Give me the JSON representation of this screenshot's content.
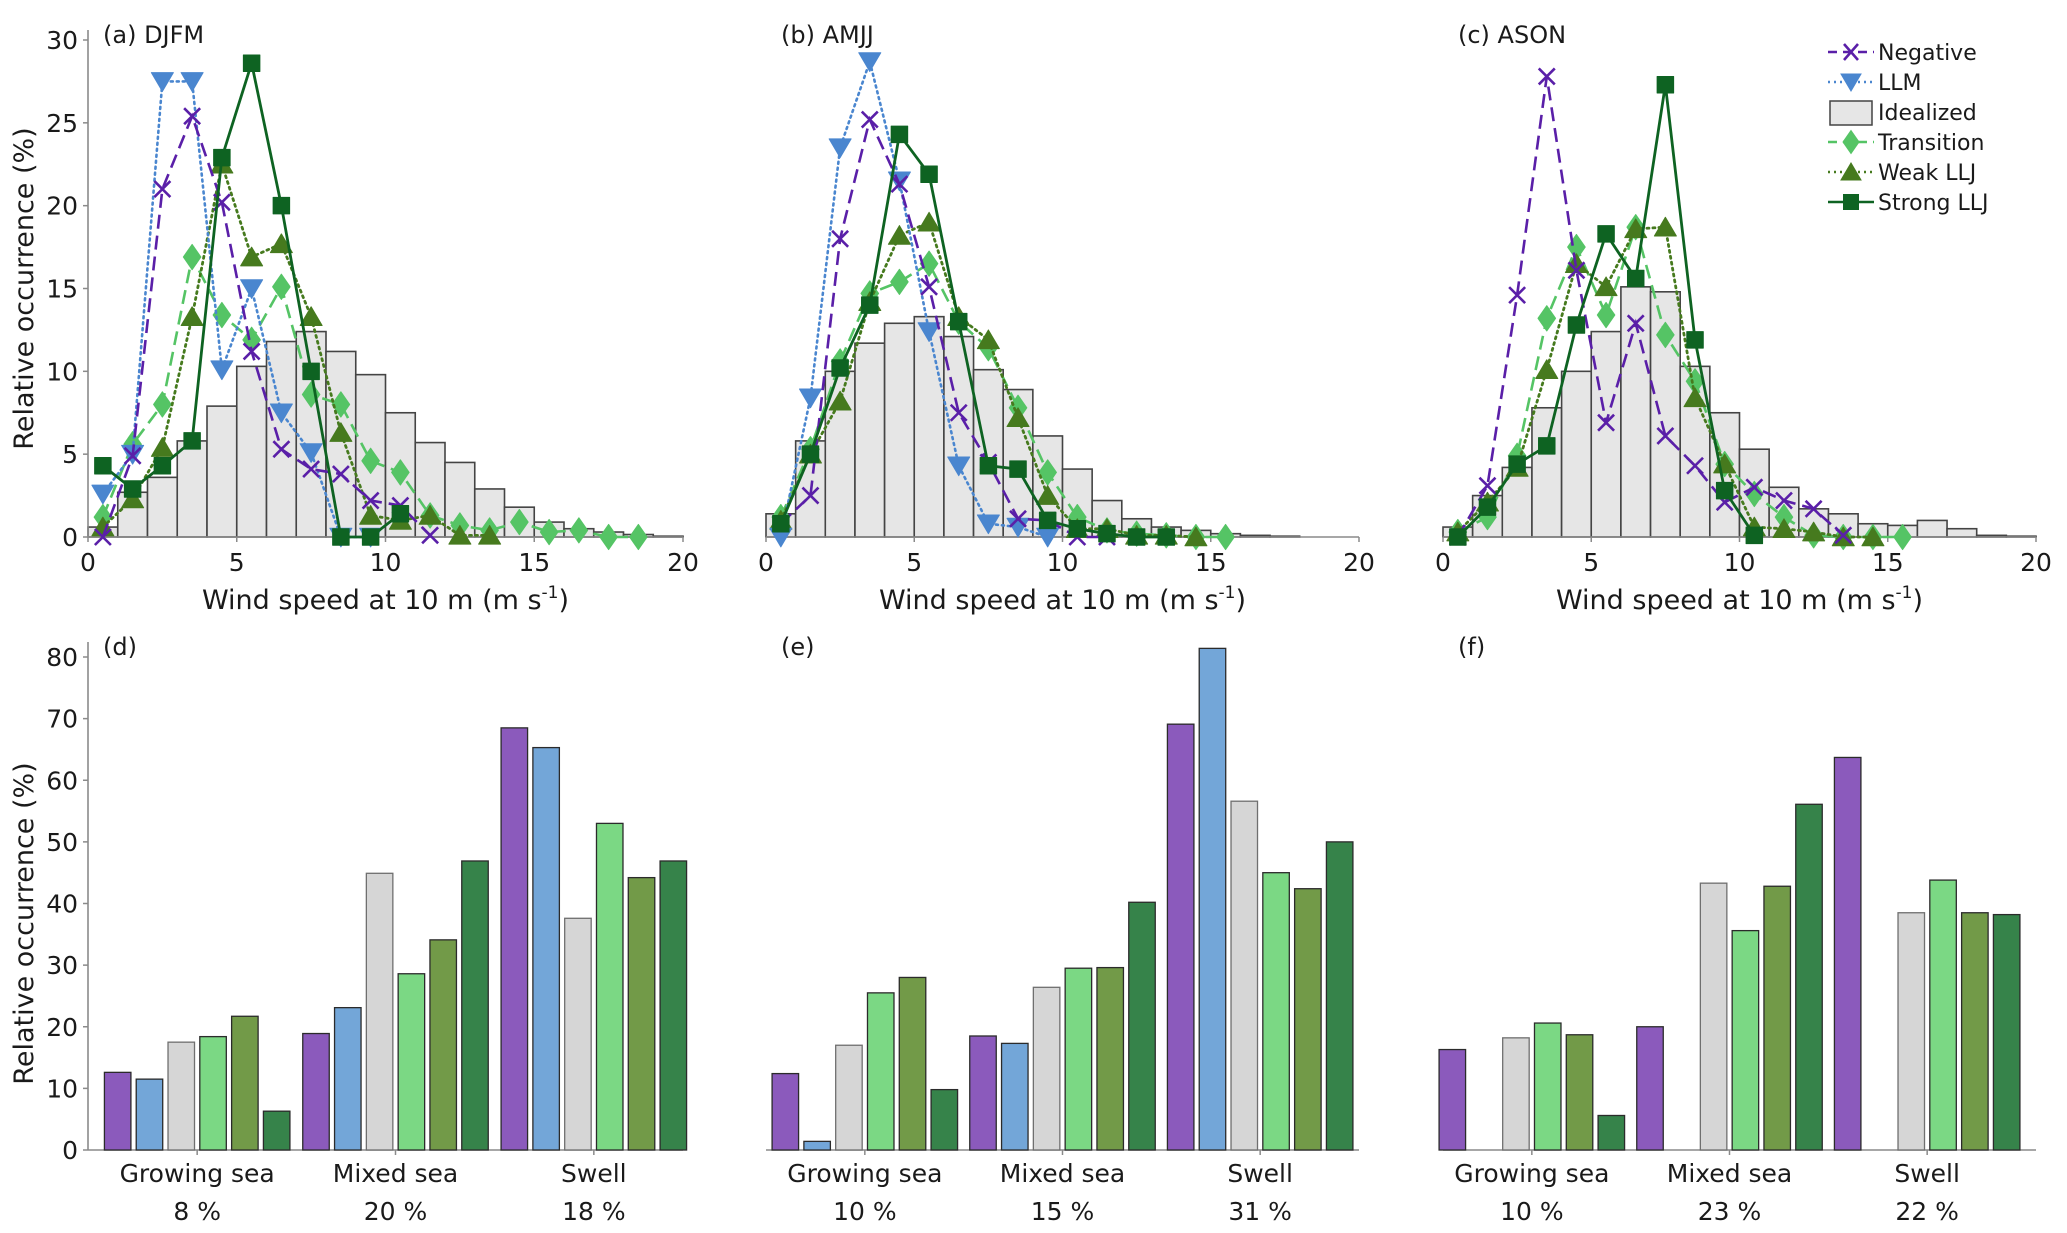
{
  "colors": {
    "negative": "#5a1fa8",
    "llm": "#4a86cf",
    "idealized_fill": "#e6e6e6",
    "idealized_edge": "#444444",
    "transition": "#55c465",
    "weak_llj": "#467a1e",
    "strong_llj": "#0e6322",
    "bar_negative": "#8b5abc",
    "bar_llm": "#73a6d8",
    "bar_idealized": "#d6d6d6",
    "bar_transition": "#7bd884",
    "bar_weak_llj": "#729a48",
    "bar_strong_llj": "#36834a",
    "axis": "#8a8a8a"
  },
  "legend": {
    "placement": "top-right of panel (c)",
    "items": [
      {
        "key": "negative",
        "label": "Negative",
        "marker": "x",
        "line": "dashed"
      },
      {
        "key": "llm",
        "label": "LLM",
        "marker": "triangle-down",
        "line": "dotted"
      },
      {
        "key": "idealized",
        "label": "Idealized",
        "marker": "box",
        "line": "none"
      },
      {
        "key": "transition",
        "label": "Transition",
        "marker": "diamond",
        "line": "dashed"
      },
      {
        "key": "weak_llj",
        "label": "Weak LLJ",
        "marker": "triangle-up",
        "line": "dotted"
      },
      {
        "key": "strong_llj",
        "label": "Strong LLJ",
        "marker": "square",
        "line": "solid"
      }
    ]
  },
  "chart_data": [
    {
      "type": "line",
      "panel": "a",
      "title": "(a) DJFM",
      "xlabel": "Wind speed at 10 m (m s",
      "xlabel_sup": "-1",
      "xlabel_end": ")",
      "ylabel": "Relative occurrence (%)",
      "xlim": [
        0,
        20
      ],
      "ylim": [
        0,
        30
      ],
      "xticks": [
        "0",
        "5",
        "10",
        "15",
        "20"
      ],
      "yticks": [
        "0",
        "5",
        "10",
        "15",
        "20",
        "25",
        "30"
      ],
      "idealized_bins": [
        0.6,
        2.7,
        3.6,
        5.8,
        7.9,
        10.3,
        11.8,
        12.4,
        11.2,
        9.8,
        7.5,
        5.7,
        4.5,
        2.9,
        1.8,
        0.9,
        0.5,
        0.3,
        0.15,
        0.05
      ],
      "x": [
        0.5,
        1.5,
        2.5,
        3.5,
        4.5,
        5.5,
        6.5,
        7.5,
        8.5,
        9.5,
        10.5,
        11.5,
        12.5,
        13.5,
        14.5,
        15.5,
        16.5,
        17.5,
        18.5
      ],
      "series": [
        {
          "name": "Negative",
          "key": "negative",
          "values": [
            0,
            4.9,
            21.0,
            25.4,
            20.2,
            11.2,
            5.3,
            4.1,
            3.8,
            2.2,
            1.9,
            0.1,
            null,
            null,
            null,
            null,
            null,
            null,
            null
          ]
        },
        {
          "name": "LLM",
          "key": "llm",
          "values": [
            2.6,
            5.0,
            27.5,
            27.5,
            10.1,
            15.0,
            7.5,
            5.1,
            0,
            0,
            null,
            null,
            null,
            null,
            null,
            null,
            null,
            null,
            null
          ]
        },
        {
          "name": "Transition",
          "key": "transition",
          "values": [
            1.2,
            5.6,
            8.0,
            16.9,
            13.4,
            11.9,
            15.1,
            8.6,
            8.0,
            4.6,
            3.9,
            1.3,
            0.7,
            0.4,
            0.9,
            0.3,
            0.4,
            0.0,
            0.0
          ]
        },
        {
          "name": "Weak LLJ",
          "key": "weak_llj",
          "values": [
            0.6,
            2.3,
            5.4,
            13.3,
            22.5,
            16.9,
            17.7,
            13.3,
            6.3,
            1.3,
            1.0,
            1.3,
            0.1,
            0.1,
            null,
            null,
            null,
            null,
            null
          ]
        },
        {
          "name": "Strong LLJ",
          "key": "strong_llj",
          "values": [
            4.3,
            2.9,
            4.3,
            5.8,
            22.9,
            28.6,
            20.0,
            10.0,
            0,
            0,
            1.4,
            null,
            null,
            null,
            null,
            null,
            null,
            null,
            null
          ]
        }
      ]
    },
    {
      "type": "line",
      "panel": "b",
      "title": "(b) AMJJ",
      "xlabel": "Wind speed at 10 m (m s",
      "xlabel_sup": "-1",
      "xlabel_end": ")",
      "xlim": [
        0,
        20
      ],
      "ylim": [
        0,
        30
      ],
      "xticks": [
        "0",
        "5",
        "10",
        "15",
        "20"
      ],
      "idealized_bins": [
        1.4,
        5.8,
        10.0,
        11.7,
        12.9,
        13.3,
        12.1,
        10.1,
        8.9,
        6.1,
        4.1,
        2.2,
        1.1,
        0.6,
        0.4,
        0.2,
        0.1,
        0.05,
        0.0,
        0.0
      ],
      "x": [
        0.5,
        1.5,
        2.5,
        3.5,
        4.5,
        5.5,
        6.5,
        7.5,
        8.5,
        9.5,
        10.5,
        11.5,
        12.5,
        13.5,
        14.5,
        15.5
      ],
      "series": [
        {
          "name": "Negative",
          "key": "negative",
          "values": [
            0.8,
            2.5,
            18.0,
            25.2,
            21.3,
            15.1,
            7.5,
            4.5,
            1.1,
            1.0,
            0.0,
            0.0,
            null,
            null,
            null,
            null
          ]
        },
        {
          "name": "LLM",
          "key": "llm",
          "values": [
            0,
            8.4,
            23.5,
            28.7,
            21.5,
            12.4,
            4.3,
            0.8,
            0.6,
            0,
            null,
            null,
            null,
            null,
            null,
            null
          ]
        },
        {
          "name": "Transition",
          "key": "transition",
          "values": [
            1.2,
            5.3,
            10.6,
            14.7,
            15.4,
            16.5,
            13.0,
            11.4,
            7.8,
            3.9,
            1.2,
            0.4,
            0.2,
            0.1,
            0.0,
            0.0
          ]
        },
        {
          "name": "Weak LLJ",
          "key": "weak_llj",
          "values": [
            1.0,
            5.0,
            8.2,
            14.2,
            18.2,
            19.0,
            13.3,
            11.9,
            7.2,
            2.5,
            0.5,
            0.5,
            0.1,
            0.1,
            0.0,
            null
          ]
        },
        {
          "name": "Strong LLJ",
          "key": "strong_llj",
          "values": [
            0.8,
            5.0,
            10.2,
            14.0,
            24.3,
            21.9,
            13.0,
            4.3,
            4.1,
            1.0,
            0.5,
            0.2,
            0.0,
            0.0,
            null,
            null
          ]
        }
      ]
    },
    {
      "type": "line",
      "panel": "c",
      "title": "(c) ASON",
      "xlabel": "Wind speed at 10 m (m s",
      "xlabel_sup": "-1",
      "xlabel_end": ")",
      "xlim": [
        0,
        20
      ],
      "ylim": [
        0,
        30
      ],
      "xticks": [
        "0",
        "5",
        "10",
        "15",
        "20"
      ],
      "idealized_bins": [
        0.6,
        2.5,
        4.2,
        7.8,
        10.0,
        12.4,
        15.1,
        14.8,
        10.3,
        7.5,
        5.3,
        3.0,
        1.7,
        1.4,
        0.8,
        0.7,
        1.0,
        0.5,
        0.1,
        0.05
      ],
      "x": [
        0.5,
        1.5,
        2.5,
        3.5,
        4.5,
        5.5,
        6.5,
        7.5,
        8.5,
        9.5,
        10.5,
        11.5,
        12.5,
        13.5,
        14.5,
        15.5
      ],
      "series": [
        {
          "name": "Negative",
          "key": "negative",
          "values": [
            0,
            3.1,
            14.6,
            27.8,
            16.1,
            6.9,
            12.9,
            6.1,
            4.3,
            2.1,
            3.0,
            2.2,
            1.7,
            0.1,
            null,
            null
          ]
        },
        {
          "name": "LLM",
          "key": "llm",
          "values": []
        },
        {
          "name": "Transition",
          "key": "transition",
          "values": [
            0.3,
            1.2,
            4.9,
            13.2,
            17.5,
            13.4,
            18.7,
            12.2,
            9.4,
            4.4,
            2.6,
            1.2,
            0.1,
            0.0,
            0.0,
            0.0
          ]
        },
        {
          "name": "Weak LLJ",
          "key": "weak_llj",
          "values": [
            0.3,
            2.1,
            4.2,
            10.1,
            16.5,
            15.1,
            18.6,
            18.7,
            8.4,
            4.4,
            0.6,
            0.5,
            0.3,
            0.0,
            0.0,
            null
          ]
        },
        {
          "name": "Strong LLJ",
          "key": "strong_llj",
          "values": [
            0,
            1.8,
            4.4,
            5.5,
            12.8,
            18.3,
            15.6,
            27.3,
            11.9,
            2.8,
            0.1,
            null,
            null,
            null,
            null,
            null
          ]
        }
      ]
    },
    {
      "type": "bar",
      "panel": "d",
      "title": "(d)",
      "ylabel": "Relative occurrence (%)",
      "ylim": [
        0,
        80
      ],
      "yticks": [
        "0",
        "10",
        "20",
        "30",
        "40",
        "50",
        "60",
        "70",
        "80"
      ],
      "categories": [
        "Growing sea",
        "Mixed sea",
        "Swell"
      ],
      "category_pcts": [
        "8 %",
        "20 %",
        "18 %"
      ],
      "series": [
        {
          "name": "Negative",
          "key": "bar_negative",
          "values": [
            12.6,
            18.9,
            68.5
          ]
        },
        {
          "name": "LLM",
          "key": "bar_llm",
          "values": [
            11.5,
            23.1,
            65.3
          ]
        },
        {
          "name": "Idealized",
          "key": "bar_idealized",
          "values": [
            17.5,
            44.9,
            37.6
          ]
        },
        {
          "name": "Transition",
          "key": "bar_transition",
          "values": [
            18.4,
            28.6,
            53.0
          ]
        },
        {
          "name": "Weak LLJ",
          "key": "bar_weak_llj",
          "values": [
            21.7,
            34.1,
            44.2
          ]
        },
        {
          "name": "Strong LLJ",
          "key": "bar_strong_llj",
          "values": [
            6.3,
            46.9,
            46.9
          ]
        }
      ]
    },
    {
      "type": "bar",
      "panel": "e",
      "title": "(e)",
      "ylim": [
        0,
        80
      ],
      "categories": [
        "Growing sea",
        "Mixed sea",
        "Swell"
      ],
      "category_pcts": [
        "10 %",
        "15 %",
        "31 %"
      ],
      "series": [
        {
          "name": "Negative",
          "key": "bar_negative",
          "values": [
            12.4,
            18.5,
            69.1
          ]
        },
        {
          "name": "LLM",
          "key": "bar_llm",
          "values": [
            1.4,
            17.3,
            81.4
          ]
        },
        {
          "name": "Idealized",
          "key": "bar_idealized",
          "values": [
            17.0,
            26.4,
            56.6
          ]
        },
        {
          "name": "Transition",
          "key": "bar_transition",
          "values": [
            25.5,
            29.5,
            45.0
          ]
        },
        {
          "name": "Weak LLJ",
          "key": "bar_weak_llj",
          "values": [
            28.0,
            29.6,
            42.4
          ]
        },
        {
          "name": "Strong LLJ",
          "key": "bar_strong_llj",
          "values": [
            9.8,
            40.2,
            50.0
          ]
        }
      ]
    },
    {
      "type": "bar",
      "panel": "f",
      "title": "(f)",
      "ylim": [
        0,
        80
      ],
      "categories": [
        "Growing sea",
        "Mixed sea",
        "Swell"
      ],
      "category_pcts": [
        "10 %",
        "23 %",
        "22 %"
      ],
      "series": [
        {
          "name": "Negative",
          "key": "bar_negative",
          "values": [
            16.3,
            20.0,
            63.7
          ]
        },
        {
          "name": "LLM",
          "key": "bar_llm",
          "values": [
            null,
            null,
            null
          ]
        },
        {
          "name": "Idealized",
          "key": "bar_idealized",
          "values": [
            18.2,
            43.3,
            38.5
          ]
        },
        {
          "name": "Transition",
          "key": "bar_transition",
          "values": [
            20.6,
            35.6,
            43.8
          ]
        },
        {
          "name": "Weak LLJ",
          "key": "bar_weak_llj",
          "values": [
            18.7,
            42.8,
            38.5
          ]
        },
        {
          "name": "Strong LLJ",
          "key": "bar_strong_llj",
          "values": [
            5.6,
            56.1,
            38.2
          ]
        }
      ]
    }
  ]
}
